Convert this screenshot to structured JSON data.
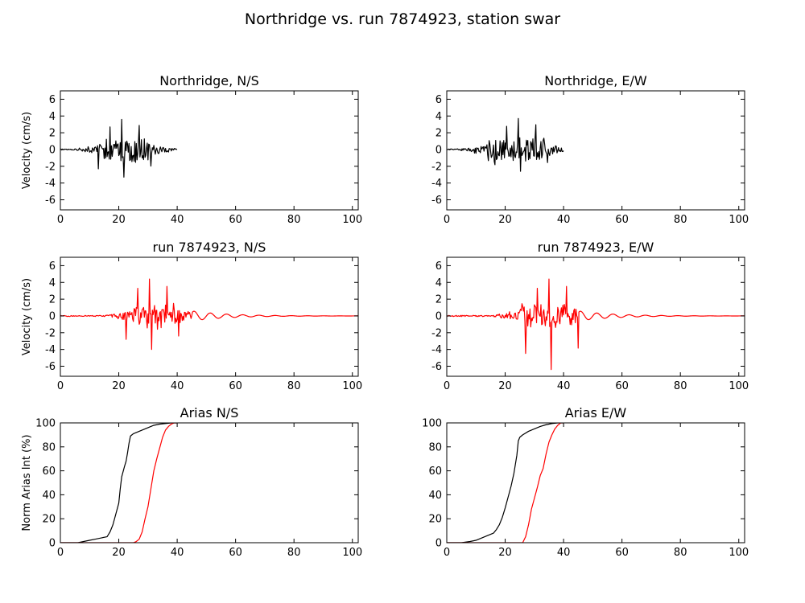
{
  "figure": {
    "title": "Northridge vs. run 7874923, station swar"
  },
  "colors": {
    "observed": "#000000",
    "synthetic": "#ff0000"
  },
  "chart_data": [
    {
      "id": "obs_ns",
      "type": "line",
      "title": "Northridge, N/S",
      "xlabel": "",
      "ylabel": "Velocity (cm/s)",
      "xlim": [
        0,
        102
      ],
      "ylim": [
        -7.2,
        7
      ],
      "xticks": [
        0,
        20,
        40,
        60,
        80,
        100
      ],
      "yticks": [
        -6,
        -4,
        -2,
        0,
        2,
        4,
        6
      ],
      "signal": {
        "start": 0,
        "end": 40,
        "onset": 15,
        "peak_time": 21,
        "peak": 3.6,
        "min": -3.3,
        "dt": 0.25,
        "color": "observed"
      }
    },
    {
      "id": "obs_ew",
      "type": "line",
      "title": "Northridge, E/W",
      "xlabel": "",
      "ylabel": "",
      "xlim": [
        0,
        102
      ],
      "ylim": [
        -7.2,
        7
      ],
      "xticks": [
        0,
        20,
        40,
        60,
        80,
        100
      ],
      "yticks": [
        -6,
        -4,
        -2,
        0,
        2,
        4,
        6
      ],
      "signal": {
        "start": 0,
        "end": 40,
        "onset": 14,
        "peak_time": 24.5,
        "peak": 3.7,
        "min": -2.6,
        "dt": 0.25,
        "color": "observed"
      }
    },
    {
      "id": "syn_ns",
      "type": "line",
      "title": "run 7874923, N/S",
      "xlabel": "",
      "ylabel": "Velocity (cm/s)",
      "xlim": [
        0,
        102
      ],
      "ylim": [
        -7.2,
        7
      ],
      "xticks": [
        0,
        20,
        40,
        60,
        80,
        100
      ],
      "yticks": [
        -6,
        -4,
        -2,
        0,
        2,
        4,
        6
      ],
      "signal": {
        "start": 0,
        "end": 102,
        "onset": 25,
        "peak_time": 30.5,
        "peak": 4.4,
        "min": -4.0,
        "dt": 0.25,
        "color": "synthetic"
      }
    },
    {
      "id": "syn_ew",
      "type": "line",
      "title": "run 7874923, E/W",
      "xlabel": "",
      "ylabel": "",
      "xlim": [
        0,
        102
      ],
      "ylim": [
        -7.2,
        7
      ],
      "xticks": [
        0,
        20,
        40,
        60,
        80,
        100
      ],
      "yticks": [
        -6,
        -4,
        -2,
        0,
        2,
        4,
        6
      ],
      "signal": {
        "start": 0,
        "end": 102,
        "onset": 25,
        "peak_time": 35,
        "peak": 4.4,
        "min": -6.4,
        "dt": 0.25,
        "color": "synthetic"
      }
    },
    {
      "id": "arias_ns",
      "type": "line",
      "title": "Arias N/S",
      "xlabel": "",
      "ylabel": "Norm Arias Int (%)",
      "xlim": [
        0,
        102
      ],
      "ylim": [
        0,
        100
      ],
      "xticks": [
        0,
        20,
        40,
        60,
        80,
        100
      ],
      "yticks": [
        0,
        20,
        40,
        60,
        80,
        100
      ],
      "series": [
        {
          "color": "observed",
          "x": [
            0,
            6,
            8,
            10,
            12,
            14,
            16,
            17,
            18,
            19,
            20,
            20.5,
            21,
            22,
            22.5,
            23,
            23.5,
            24,
            24.5,
            25,
            27,
            30,
            32,
            34,
            36,
            38,
            40
          ],
          "y": [
            0,
            0,
            1,
            2,
            3,
            4,
            5,
            9,
            15,
            24,
            33,
            45,
            55,
            64,
            68,
            75,
            83,
            89,
            90,
            91,
            93,
            96,
            98,
            99,
            99.5,
            100,
            100
          ]
        },
        {
          "color": "synthetic",
          "x": [
            0,
            25,
            26,
            27,
            28,
            29,
            30,
            31,
            32,
            33,
            34,
            35,
            36,
            37,
            38,
            39,
            40
          ],
          "y": [
            0,
            0,
            1,
            3,
            9,
            20,
            30,
            45,
            60,
            70,
            79,
            88,
            94,
            97,
            99,
            100,
            100
          ]
        }
      ]
    },
    {
      "id": "arias_ew",
      "type": "line",
      "title": "Arias E/W",
      "xlabel": "",
      "ylabel": "",
      "xlim": [
        0,
        102
      ],
      "ylim": [
        0,
        100
      ],
      "xticks": [
        0,
        20,
        40,
        60,
        80,
        100
      ],
      "yticks": [
        0,
        20,
        40,
        60,
        80,
        100
      ],
      "series": [
        {
          "color": "observed",
          "x": [
            0,
            5,
            8,
            10,
            12,
            14,
            16,
            17,
            18,
            19,
            20,
            21,
            22,
            23,
            24,
            24.5,
            25,
            26,
            28,
            30,
            32,
            34,
            36,
            38,
            40
          ],
          "y": [
            0,
            0,
            1,
            2,
            4,
            6,
            8,
            11,
            15,
            21,
            29,
            38,
            47,
            58,
            73,
            85,
            88,
            90,
            93,
            95,
            97,
            98.5,
            99.5,
            100,
            100
          ]
        },
        {
          "color": "synthetic",
          "x": [
            0,
            26,
            27,
            28,
            29,
            30,
            31,
            32,
            33,
            34,
            35,
            36,
            37,
            38,
            39,
            40
          ],
          "y": [
            0,
            0,
            5,
            15,
            28,
            37,
            46,
            56,
            62,
            74,
            84,
            90,
            95,
            98,
            100,
            100
          ]
        }
      ]
    }
  ]
}
